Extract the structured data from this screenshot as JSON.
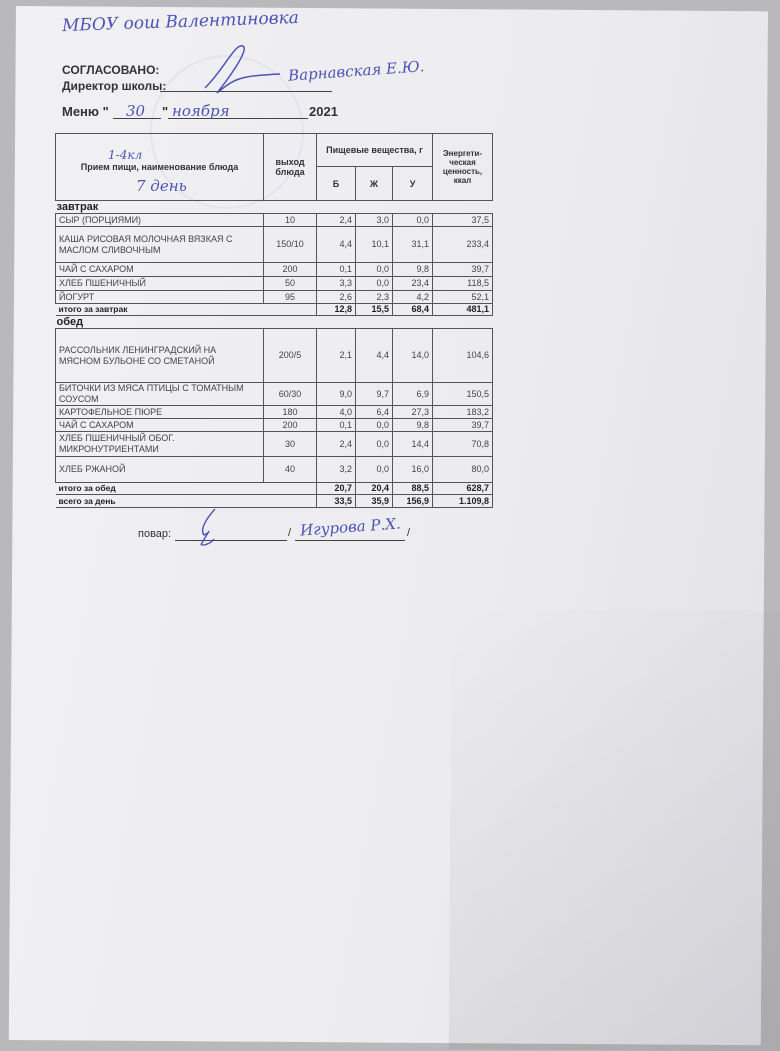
{
  "handwritten": {
    "school": "МБОУ оош Валентиновка",
    "director_name": "Варнавская Е.Ю.",
    "day": "30",
    "month": "ноября",
    "age_group": "1-4кл",
    "menu_day": "7 день",
    "cook_name": "Игурова Р.Х."
  },
  "header": {
    "approved": "СОГЛАСОВАНО:",
    "director_label": "Директор школы:",
    "menu_prefix": "Меню \"",
    "menu_quote": "\"",
    "year": "2021"
  },
  "table": {
    "col_meal": "Прием пищи, наименование блюда",
    "col_yield": "выход блюда",
    "col_nutrients": "Пищевые вещества, г",
    "col_b": "Б",
    "col_zh": "Ж",
    "col_u": "У",
    "col_energy": "Энергети-ческая ценность, ккал"
  },
  "breakfast": {
    "title": "завтрак",
    "rows": [
      {
        "name": "СЫР (ПОРЦИЯМИ)",
        "yield": "10",
        "b": "2,4",
        "zh": "3,0",
        "u": "0,0",
        "kcal": "37,5"
      },
      {
        "name": "КАША РИСОВАЯ МОЛОЧНАЯ ВЯЗКАЯ С МАСЛОМ СЛИВОЧНЫМ",
        "yield": "150/10",
        "b": "4,4",
        "zh": "10,1",
        "u": "31,1",
        "kcal": "233,4"
      },
      {
        "name": "ЧАЙ С САХАРОМ",
        "yield": "200",
        "b": "0,1",
        "zh": "0,0",
        "u": "9,8",
        "kcal": "39,7"
      },
      {
        "name": "ХЛЕБ ПШЕНИЧНЫЙ",
        "yield": "50",
        "b": "3,3",
        "zh": "0,0",
        "u": "23,4",
        "kcal": "118,5"
      },
      {
        "name": "ЙОГУРТ",
        "yield": "95",
        "b": "2,6",
        "zh": "2,3",
        "u": "4,2",
        "kcal": "52,1"
      }
    ],
    "total": {
      "label": "итого за завтрак",
      "b": "12,8",
      "zh": "15,5",
      "u": "68,4",
      "kcal": "481,1"
    }
  },
  "lunch": {
    "title": "обед",
    "rows": [
      {
        "name": "РАССОЛЬНИК ЛЕНИНГРАДСКИЙ НА МЯСНОМ БУЛЬОНЕ СО СМЕТАНОЙ",
        "yield": "200/5",
        "b": "2,1",
        "zh": "4,4",
        "u": "14,0",
        "kcal": "104,6"
      },
      {
        "name": "БИТОЧКИ ИЗ  МЯСА  ПТИЦЫ С ТОМАТНЫМ  СОУСОМ",
        "yield": "60/30",
        "b": "9,0",
        "zh": "9,7",
        "u": "6,9",
        "kcal": "150,5"
      },
      {
        "name": "КАРТОФЕЛЬНОЕ ПЮРЕ",
        "yield": "180",
        "b": "4,0",
        "zh": "6,4",
        "u": "27,3",
        "kcal": "183,2"
      },
      {
        "name": "ЧАЙ С САХАРОМ",
        "yield": "200",
        "b": "0,1",
        "zh": "0,0",
        "u": "9,8",
        "kcal": "39,7"
      },
      {
        "name": "ХЛЕБ ПШЕНИЧНЫЙ ОБОГ. МИКРОНУТРИЕНТАМИ",
        "yield": "30",
        "b": "2,4",
        "zh": "0,0",
        "u": "14,4",
        "kcal": "70,8"
      },
      {
        "name": "ХЛЕБ РЖАНОЙ",
        "yield": "40",
        "b": "3,2",
        "zh": "0,0",
        "u": "16,0",
        "kcal": "80,0"
      }
    ],
    "total": {
      "label": "итого за обед",
      "b": "20,7",
      "zh": "20,4",
      "u": "88,5",
      "kcal": "628,7"
    }
  },
  "day_total": {
    "label": "всего за день",
    "b": "33,5",
    "zh": "35,9",
    "u": "156,9",
    "kcal": "1.109,8"
  },
  "footer": {
    "cook_label": "повар:",
    "slash": "/"
  }
}
